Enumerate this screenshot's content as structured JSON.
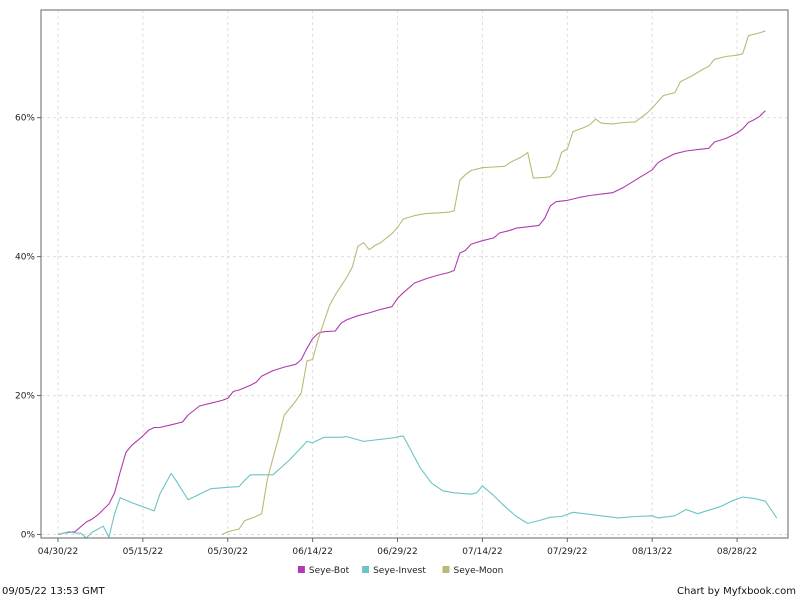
{
  "chart_data": {
    "type": "line",
    "x_type": "date",
    "ylim": [
      -0.5,
      75.5
    ],
    "y_ticks": [
      0,
      20,
      40,
      60
    ],
    "y_tick_labels": [
      "0%",
      "20%",
      "40%",
      "60%"
    ],
    "x_ticks": [
      "2022-04-30",
      "2022-05-15",
      "2022-05-30",
      "2022-06-14",
      "2022-06-29",
      "2022-07-14",
      "2022-07-29",
      "2022-08-13",
      "2022-08-28"
    ],
    "x_tick_labels": [
      "04/30/22",
      "05/15/22",
      "05/30/22",
      "06/14/22",
      "06/29/22",
      "07/14/22",
      "07/29/22",
      "08/13/22",
      "08/28/22"
    ],
    "xlim": [
      "2022-04-27",
      "2022-09-06"
    ],
    "grid": true,
    "legend_position": "bottom-center",
    "series": [
      {
        "name": "Seye-Bot",
        "color": "#b03ab0",
        "points": [
          [
            "2022-04-30",
            0
          ],
          [
            "2022-05-01",
            0.2
          ],
          [
            "2022-05-03",
            0.4
          ],
          [
            "2022-05-05",
            1.8
          ],
          [
            "2022-05-06",
            2.2
          ],
          [
            "2022-05-07",
            2.8
          ],
          [
            "2022-05-08",
            3.6
          ],
          [
            "2022-05-09",
            4.4
          ],
          [
            "2022-05-10",
            6.0
          ],
          [
            "2022-05-11",
            9.0
          ],
          [
            "2022-05-12",
            11.8
          ],
          [
            "2022-05-13",
            12.8
          ],
          [
            "2022-05-15",
            14.2
          ],
          [
            "2022-05-16",
            15.0
          ],
          [
            "2022-05-17",
            15.4
          ],
          [
            "2022-05-18",
            15.4
          ],
          [
            "2022-05-20",
            15.8
          ],
          [
            "2022-05-22",
            16.2
          ],
          [
            "2022-05-23",
            17.2
          ],
          [
            "2022-05-25",
            18.5
          ],
          [
            "2022-05-27",
            18.9
          ],
          [
            "2022-05-29",
            19.3
          ],
          [
            "2022-05-30",
            19.6
          ],
          [
            "2022-05-31",
            20.6
          ],
          [
            "2022-06-01",
            20.8
          ],
          [
            "2022-06-03",
            21.5
          ],
          [
            "2022-06-04",
            21.9
          ],
          [
            "2022-06-05",
            22.8
          ],
          [
            "2022-06-07",
            23.6
          ],
          [
            "2022-06-09",
            24.1
          ],
          [
            "2022-06-11",
            24.5
          ],
          [
            "2022-06-12",
            25.2
          ],
          [
            "2022-06-13",
            26.8
          ],
          [
            "2022-06-14",
            28.2
          ],
          [
            "2022-06-15",
            29.0
          ],
          [
            "2022-06-16",
            29.2
          ],
          [
            "2022-06-18",
            29.3
          ],
          [
            "2022-06-19",
            30.4
          ],
          [
            "2022-06-20",
            30.9
          ],
          [
            "2022-06-22",
            31.5
          ],
          [
            "2022-06-24",
            31.9
          ],
          [
            "2022-06-26",
            32.4
          ],
          [
            "2022-06-28",
            32.8
          ],
          [
            "2022-06-29",
            34.0
          ],
          [
            "2022-06-30",
            34.8
          ],
          [
            "2022-07-02",
            36.2
          ],
          [
            "2022-07-04",
            36.8
          ],
          [
            "2022-07-06",
            37.3
          ],
          [
            "2022-07-08",
            37.7
          ],
          [
            "2022-07-09",
            38.0
          ],
          [
            "2022-07-10",
            40.5
          ],
          [
            "2022-07-11",
            40.9
          ],
          [
            "2022-07-12",
            41.8
          ],
          [
            "2022-07-14",
            42.3
          ],
          [
            "2022-07-16",
            42.7
          ],
          [
            "2022-07-17",
            43.4
          ],
          [
            "2022-07-19",
            43.8
          ],
          [
            "2022-07-20",
            44.1
          ],
          [
            "2022-07-22",
            44.3
          ],
          [
            "2022-07-24",
            44.5
          ],
          [
            "2022-07-25",
            45.5
          ],
          [
            "2022-07-26",
            47.3
          ],
          [
            "2022-07-27",
            47.9
          ],
          [
            "2022-07-29",
            48.1
          ],
          [
            "2022-07-31",
            48.5
          ],
          [
            "2022-08-02",
            48.8
          ],
          [
            "2022-08-04",
            49.0
          ],
          [
            "2022-08-06",
            49.2
          ],
          [
            "2022-08-08",
            50.0
          ],
          [
            "2022-08-10",
            51.0
          ],
          [
            "2022-08-12",
            52.0
          ],
          [
            "2022-08-13",
            52.5
          ],
          [
            "2022-08-14",
            53.5
          ],
          [
            "2022-08-15",
            54.0
          ],
          [
            "2022-08-17",
            54.8
          ],
          [
            "2022-08-19",
            55.2
          ],
          [
            "2022-08-21",
            55.4
          ],
          [
            "2022-08-23",
            55.6
          ],
          [
            "2022-08-24",
            56.5
          ],
          [
            "2022-08-26",
            57.0
          ],
          [
            "2022-08-28",
            57.8
          ],
          [
            "2022-08-29",
            58.4
          ],
          [
            "2022-08-30",
            59.3
          ],
          [
            "2022-08-31",
            59.7
          ],
          [
            "2022-09-01",
            60.2
          ],
          [
            "2022-09-02",
            61.0
          ]
        ]
      },
      {
        "name": "Seye-Invest",
        "color": "#6cc4c4",
        "points": [
          [
            "2022-04-30",
            0
          ],
          [
            "2022-05-02",
            0.4
          ],
          [
            "2022-05-03",
            0.2
          ],
          [
            "2022-05-04",
            0.2
          ],
          [
            "2022-05-05",
            -0.5
          ],
          [
            "2022-05-06",
            0.3
          ],
          [
            "2022-05-08",
            1.2
          ],
          [
            "2022-05-09",
            -0.4
          ],
          [
            "2022-05-10",
            3.0
          ],
          [
            "2022-05-11",
            5.3
          ],
          [
            "2022-05-13",
            4.6
          ],
          [
            "2022-05-15",
            4.0
          ],
          [
            "2022-05-17",
            3.4
          ],
          [
            "2022-05-18",
            5.8
          ],
          [
            "2022-05-20",
            8.8
          ],
          [
            "2022-05-21",
            7.6
          ],
          [
            "2022-05-23",
            5.0
          ],
          [
            "2022-05-25",
            5.8
          ],
          [
            "2022-05-27",
            6.6
          ],
          [
            "2022-05-30",
            6.8
          ],
          [
            "2022-06-01",
            6.9
          ],
          [
            "2022-06-02",
            7.8
          ],
          [
            "2022-06-03",
            8.6
          ],
          [
            "2022-06-06",
            8.6
          ],
          [
            "2022-06-07",
            8.6
          ],
          [
            "2022-06-10",
            10.8
          ],
          [
            "2022-06-13",
            13.4
          ],
          [
            "2022-06-14",
            13.2
          ],
          [
            "2022-06-16",
            14.0
          ],
          [
            "2022-06-19",
            14.0
          ],
          [
            "2022-06-20",
            14.1
          ],
          [
            "2022-06-23",
            13.4
          ],
          [
            "2022-06-25",
            13.6
          ],
          [
            "2022-06-28",
            13.9
          ],
          [
            "2022-06-30",
            14.2
          ],
          [
            "2022-07-03",
            9.6
          ],
          [
            "2022-07-05",
            7.4
          ],
          [
            "2022-07-07",
            6.3
          ],
          [
            "2022-07-09",
            6.0
          ],
          [
            "2022-07-12",
            5.8
          ],
          [
            "2022-07-13",
            6.0
          ],
          [
            "2022-07-14",
            7.0
          ],
          [
            "2022-07-16",
            5.6
          ],
          [
            "2022-07-18",
            4.0
          ],
          [
            "2022-07-20",
            2.6
          ],
          [
            "2022-07-22",
            1.6
          ],
          [
            "2022-07-24",
            2.0
          ],
          [
            "2022-07-26",
            2.5
          ],
          [
            "2022-07-28",
            2.6
          ],
          [
            "2022-07-30",
            3.2
          ],
          [
            "2022-08-01",
            3.0
          ],
          [
            "2022-08-04",
            2.7
          ],
          [
            "2022-08-07",
            2.4
          ],
          [
            "2022-08-10",
            2.6
          ],
          [
            "2022-08-13",
            2.7
          ],
          [
            "2022-08-14",
            2.4
          ],
          [
            "2022-08-17",
            2.7
          ],
          [
            "2022-08-19",
            3.6
          ],
          [
            "2022-08-21",
            3.0
          ],
          [
            "2022-08-23",
            3.5
          ],
          [
            "2022-08-25",
            4.0
          ],
          [
            "2022-08-27",
            4.8
          ],
          [
            "2022-08-29",
            5.4
          ],
          [
            "2022-08-31",
            5.2
          ],
          [
            "2022-09-01",
            5.0
          ],
          [
            "2022-09-02",
            4.8
          ],
          [
            "2022-09-04",
            2.4
          ]
        ]
      },
      {
        "name": "Seye-Moon",
        "color": "#bcb878",
        "points": [
          [
            "2022-05-29",
            0
          ],
          [
            "2022-05-30",
            0.4
          ],
          [
            "2022-05-31",
            0.6
          ],
          [
            "2022-06-01",
            0.8
          ],
          [
            "2022-06-02",
            2.0
          ],
          [
            "2022-06-04",
            2.6
          ],
          [
            "2022-06-05",
            3.0
          ],
          [
            "2022-06-06",
            8.0
          ],
          [
            "2022-06-07",
            11.0
          ],
          [
            "2022-06-08",
            14.0
          ],
          [
            "2022-06-09",
            17.2
          ],
          [
            "2022-06-11",
            19.2
          ],
          [
            "2022-06-12",
            20.4
          ],
          [
            "2022-06-13",
            25.0
          ],
          [
            "2022-06-14",
            25.2
          ],
          [
            "2022-06-15",
            28.2
          ],
          [
            "2022-06-17",
            33.0
          ],
          [
            "2022-06-18",
            34.5
          ],
          [
            "2022-06-20",
            37.0
          ],
          [
            "2022-06-21",
            38.5
          ],
          [
            "2022-06-22",
            41.5
          ],
          [
            "2022-06-23",
            42.0
          ],
          [
            "2022-06-24",
            41.0
          ],
          [
            "2022-06-25",
            41.6
          ],
          [
            "2022-06-26",
            42.0
          ],
          [
            "2022-06-28",
            43.3
          ],
          [
            "2022-06-29",
            44.2
          ],
          [
            "2022-06-30",
            45.4
          ],
          [
            "2022-07-02",
            45.9
          ],
          [
            "2022-07-04",
            46.2
          ],
          [
            "2022-07-06",
            46.3
          ],
          [
            "2022-07-08",
            46.4
          ],
          [
            "2022-07-09",
            46.6
          ],
          [
            "2022-07-10",
            51.0
          ],
          [
            "2022-07-11",
            51.8
          ],
          [
            "2022-07-12",
            52.4
          ],
          [
            "2022-07-14",
            52.8
          ],
          [
            "2022-07-16",
            52.9
          ],
          [
            "2022-07-18",
            53.0
          ],
          [
            "2022-07-19",
            53.6
          ],
          [
            "2022-07-21",
            54.4
          ],
          [
            "2022-07-22",
            55.0
          ],
          [
            "2022-07-23",
            51.3
          ],
          [
            "2022-07-25",
            51.4
          ],
          [
            "2022-07-26",
            51.5
          ],
          [
            "2022-07-27",
            52.5
          ],
          [
            "2022-07-28",
            55.0
          ],
          [
            "2022-07-29",
            55.5
          ],
          [
            "2022-07-30",
            58.0
          ],
          [
            "2022-08-01",
            58.6
          ],
          [
            "2022-08-02",
            59.0
          ],
          [
            "2022-08-03",
            59.8
          ],
          [
            "2022-08-04",
            59.2
          ],
          [
            "2022-08-06",
            59.1
          ],
          [
            "2022-08-08",
            59.3
          ],
          [
            "2022-08-10",
            59.4
          ],
          [
            "2022-08-12",
            60.6
          ],
          [
            "2022-08-13",
            61.4
          ],
          [
            "2022-08-15",
            63.2
          ],
          [
            "2022-08-17",
            63.6
          ],
          [
            "2022-08-18",
            65.2
          ],
          [
            "2022-08-20",
            66.0
          ],
          [
            "2022-08-22",
            67.0
          ],
          [
            "2022-08-23",
            67.4
          ],
          [
            "2022-08-24",
            68.4
          ],
          [
            "2022-08-26",
            68.8
          ],
          [
            "2022-08-28",
            69.0
          ],
          [
            "2022-08-29",
            69.2
          ],
          [
            "2022-08-30",
            71.8
          ],
          [
            "2022-09-01",
            72.2
          ],
          [
            "2022-09-02",
            72.5
          ]
        ]
      }
    ]
  },
  "footer": {
    "timestamp": "09/05/22 13:53 GMT",
    "credit": "Chart by Myfxbook.com"
  }
}
